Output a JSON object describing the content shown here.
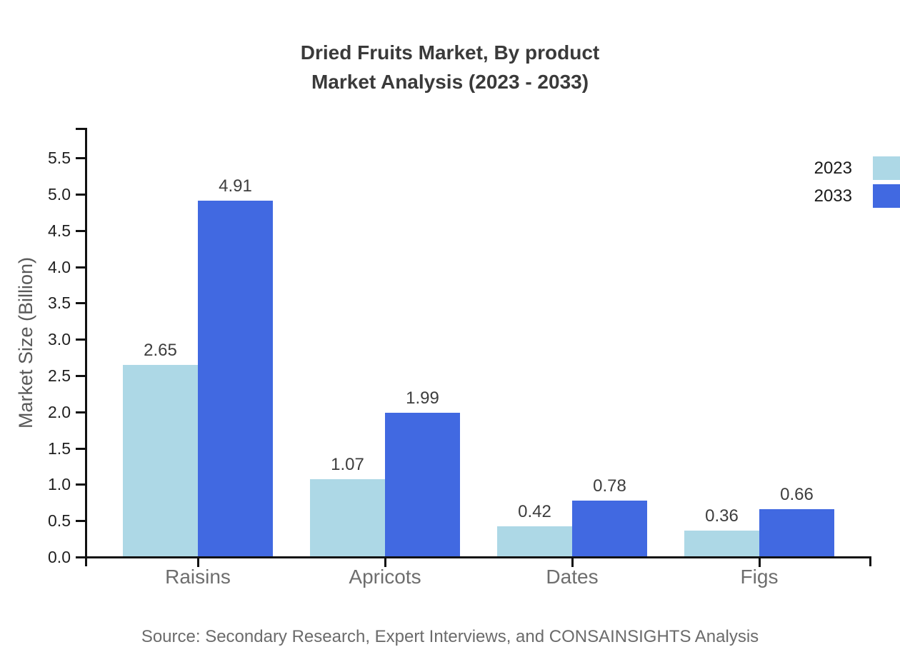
{
  "title": {
    "line1": "Dried Fruits Market, By product",
    "line2": "Market Analysis (2023 - 2033)"
  },
  "source": "Source: Secondary Research, Expert Interviews, and CONSAINSIGHTS Analysis",
  "chart_data": {
    "type": "bar",
    "categories": [
      "Raisins",
      "Apricots",
      "Dates",
      "Figs"
    ],
    "series": [
      {
        "name": "2023",
        "color": "#ADD8E6",
        "values": [
          2.65,
          1.07,
          0.42,
          0.36
        ]
      },
      {
        "name": "2033",
        "color": "#4169E1",
        "values": [
          4.91,
          1.99,
          0.78,
          0.66
        ]
      }
    ],
    "title": "Dried Fruits Market, By product Market Analysis (2023 - 2033)",
    "xlabel": "",
    "ylabel": "Market Size (Billion)",
    "ylim": [
      0,
      5.9
    ],
    "ytick_step": 0.5,
    "ytick_max": 5.5,
    "grid": false,
    "legend_position": "top-right",
    "value_labels": true
  }
}
